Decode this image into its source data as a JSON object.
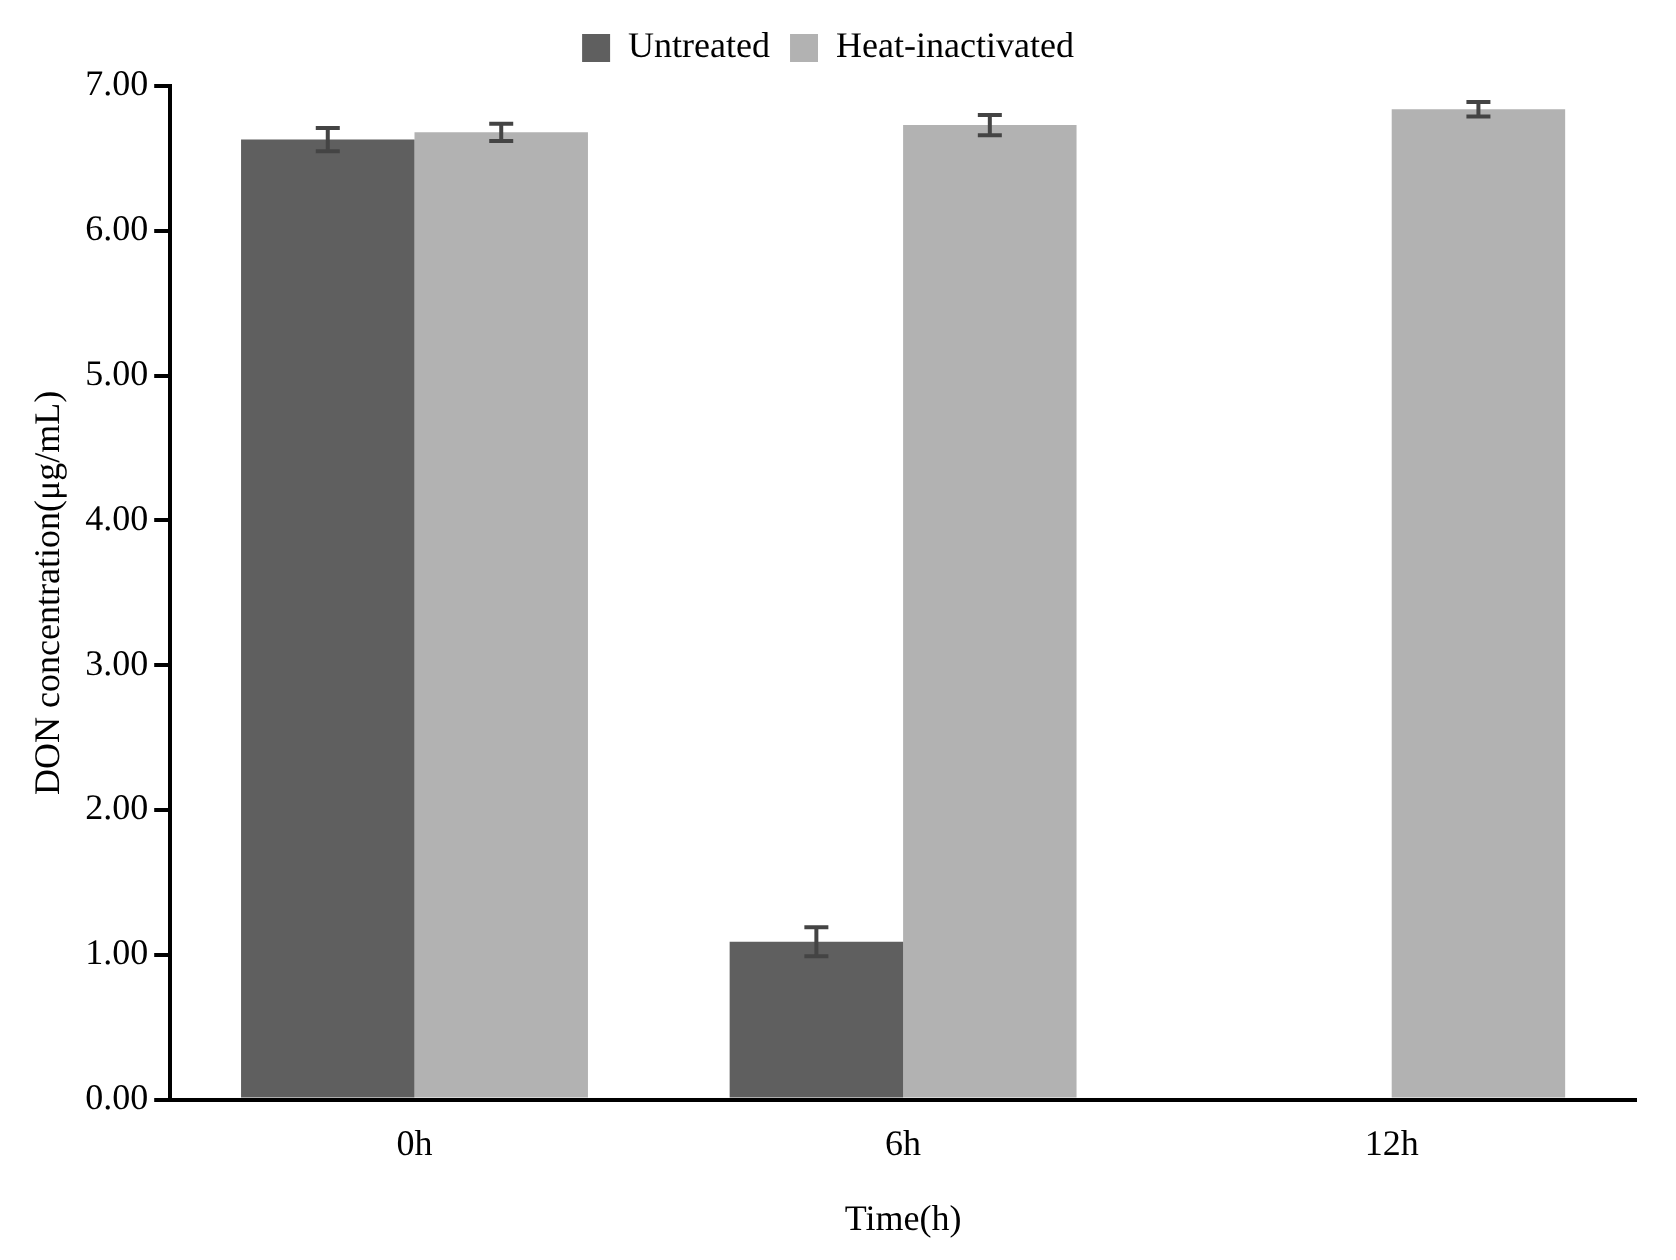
{
  "chart_data": {
    "type": "bar",
    "xlabel": "Time(h)",
    "ylabel": "DON concentration(μg/mL)",
    "categories": [
      "0h",
      "6h",
      "12h"
    ],
    "series": [
      {
        "name": "Untreated",
        "color": "#5f5f5f",
        "values": [
          6.63,
          1.09,
          null
        ],
        "errors": [
          0.08,
          0.1,
          null
        ]
      },
      {
        "name": "Heat-inactivated",
        "color": "#b2b2b2",
        "values": [
          6.68,
          6.73,
          6.84
        ],
        "errors": [
          0.06,
          0.07,
          0.05
        ]
      }
    ],
    "ylim": [
      0,
      7
    ],
    "yticks": [
      {
        "value": 0,
        "label": "0.00"
      },
      {
        "value": 1,
        "label": "1.00"
      },
      {
        "value": 2,
        "label": "2.00"
      },
      {
        "value": 3,
        "label": "3.00"
      },
      {
        "value": 4,
        "label": "4.00"
      },
      {
        "value": 5,
        "label": "5.00"
      },
      {
        "value": 6,
        "label": "6.00"
      },
      {
        "value": 7,
        "label": "7.00"
      }
    ],
    "grid": false,
    "legend": "top"
  }
}
